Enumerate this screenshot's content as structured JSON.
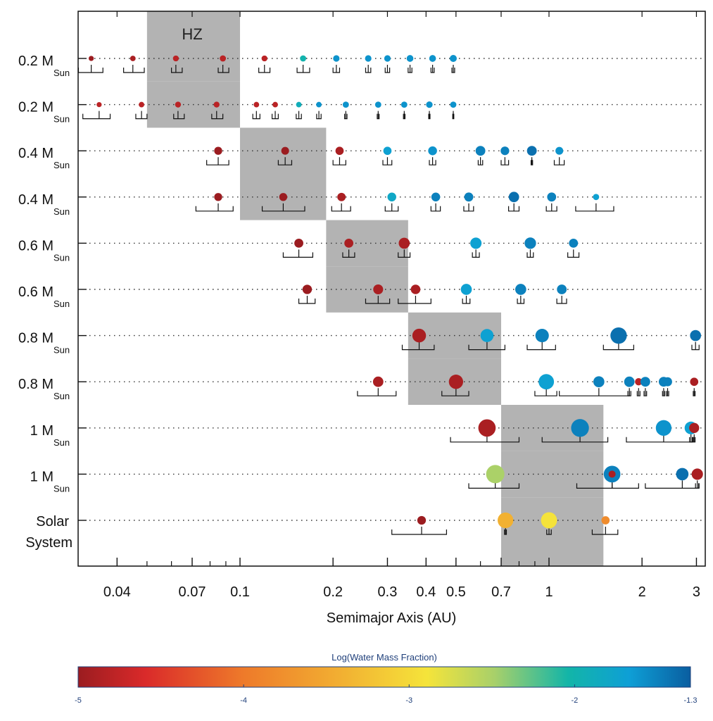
{
  "chart_data": {
    "type": "scatter",
    "xlabel": "Semimajor Axis (AU)",
    "x_scale": "log",
    "xlim": [
      0.03,
      3.1
    ],
    "x_ticks": [
      {
        "value": 0.04,
        "label": "0.04"
      },
      {
        "value": 0.07,
        "label": "0.07"
      },
      {
        "value": 0.1,
        "label": "0.1"
      },
      {
        "value": 0.2,
        "label": "0.2"
      },
      {
        "value": 0.3,
        "label": "0.3"
      },
      {
        "value": 0.4,
        "label": "0.4"
      },
      {
        "value": 0.5,
        "label": "0.5"
      },
      {
        "value": 0.7,
        "label": "0.7"
      },
      {
        "value": 1,
        "label": "1"
      },
      {
        "value": 2,
        "label": "2"
      },
      {
        "value": 3,
        "label": "3"
      }
    ],
    "hz_label": "HZ",
    "colorbar": {
      "title": "Log(Water Mass Fraction)",
      "range": [
        -5,
        -1.3
      ],
      "ticks": [
        {
          "value": -5,
          "label": "-5"
        },
        {
          "value": -4,
          "label": "-4"
        },
        {
          "value": -3,
          "label": "-3"
        },
        {
          "value": -2,
          "label": "-2"
        },
        {
          "value": -1.3,
          "label": "-1.3"
        }
      ]
    },
    "rows": [
      {
        "label_main": "0.2 M",
        "label_sub": "Sun",
        "hz": [
          0.05,
          0.1
        ],
        "planets": [
          {
            "a": 0.033,
            "lw": -5,
            "m": 0.3,
            "e": [
              0.03,
              0.036
            ]
          },
          {
            "a": 0.045,
            "lw": -4.9,
            "m": 0.4,
            "e": [
              0.042,
              0.049
            ]
          },
          {
            "a": 0.062,
            "lw": -4.8,
            "m": 0.5,
            "e": [
              0.06,
              0.065
            ]
          },
          {
            "a": 0.088,
            "lw": -4.8,
            "m": 0.6,
            "e": [
              0.085,
              0.092
            ]
          },
          {
            "a": 0.12,
            "lw": -4.8,
            "m": 0.5,
            "e": [
              0.115,
              0.125
            ]
          },
          {
            "a": 0.16,
            "lw": -2,
            "m": 0.6,
            "e": [
              0.153,
              0.168
            ]
          },
          {
            "a": 0.205,
            "lw": -1.6,
            "m": 0.7,
            "e": [
              0.2,
              0.21
            ]
          },
          {
            "a": 0.26,
            "lw": -1.6,
            "m": 0.7,
            "e": [
              0.255,
              0.265
            ]
          },
          {
            "a": 0.3,
            "lw": -1.6,
            "m": 0.7,
            "e": [
              0.295,
              0.305
            ]
          },
          {
            "a": 0.355,
            "lw": -1.6,
            "m": 0.8,
            "e": [
              0.35,
              0.36
            ]
          },
          {
            "a": 0.42,
            "lw": -1.6,
            "m": 0.8,
            "e": [
              0.415,
              0.425
            ]
          },
          {
            "a": 0.49,
            "lw": -1.6,
            "m": 0.9,
            "e": [
              0.485,
              0.495
            ]
          }
        ]
      },
      {
        "label_main": "0.2 M",
        "label_sub": "Sun",
        "hz": [
          0.05,
          0.1
        ],
        "planets": [
          {
            "a": 0.035,
            "lw": -4.8,
            "m": 0.3,
            "e": [
              0.031,
              0.038
            ]
          },
          {
            "a": 0.048,
            "lw": -4.8,
            "m": 0.4,
            "e": [
              0.046,
              0.05
            ]
          },
          {
            "a": 0.063,
            "lw": -4.8,
            "m": 0.5,
            "e": [
              0.061,
              0.066
            ]
          },
          {
            "a": 0.084,
            "lw": -4.8,
            "m": 0.5,
            "e": [
              0.081,
              0.088
            ]
          },
          {
            "a": 0.113,
            "lw": -4.8,
            "m": 0.4,
            "e": [
              0.11,
              0.116
            ]
          },
          {
            "a": 0.13,
            "lw": -4.8,
            "m": 0.4,
            "e": [
              0.127,
              0.133
            ]
          },
          {
            "a": 0.155,
            "lw": -1.9,
            "m": 0.4,
            "e": [
              0.152,
              0.158
            ]
          },
          {
            "a": 0.18,
            "lw": -1.6,
            "m": 0.4,
            "e": [
              0.177,
              0.183
            ]
          },
          {
            "a": 0.22,
            "lw": -1.6,
            "m": 0.6,
            "e": [
              0.218,
              0.222
            ]
          },
          {
            "a": 0.28,
            "lw": -1.6,
            "m": 0.6,
            "e": [
              0.278,
              0.282
            ]
          },
          {
            "a": 0.34,
            "lw": -1.6,
            "m": 0.6,
            "e": [
              0.338,
              0.342
            ]
          },
          {
            "a": 0.41,
            "lw": -1.6,
            "m": 0.7,
            "e": [
              0.408,
              0.412
            ]
          },
          {
            "a": 0.49,
            "lw": -1.6,
            "m": 0.6,
            "e": [
              0.488,
              0.492
            ]
          }
        ]
      },
      {
        "label_main": "0.4 M",
        "label_sub": "Sun",
        "hz": [
          0.1,
          0.19
        ],
        "planets": [
          {
            "a": 0.085,
            "lw": -5,
            "m": 1.3,
            "e": [
              0.078,
              0.092
            ]
          },
          {
            "a": 0.14,
            "lw": -5,
            "m": 1.2,
            "e": [
              0.133,
              0.147
            ]
          },
          {
            "a": 0.21,
            "lw": -4.9,
            "m": 1.4,
            "e": [
              0.2,
              0.22
            ]
          },
          {
            "a": 0.3,
            "lw": -1.7,
            "m": 1.4,
            "e": [
              0.29,
              0.31
            ]
          },
          {
            "a": 0.42,
            "lw": -1.6,
            "m": 1.7,
            "e": [
              0.41,
              0.43
            ]
          },
          {
            "a": 0.6,
            "lw": -1.5,
            "m": 2.2,
            "e": [
              0.59,
              0.61
            ]
          },
          {
            "a": 0.72,
            "lw": -1.5,
            "m": 1.6,
            "e": [
              0.7,
              0.74
            ]
          },
          {
            "a": 0.88,
            "lw": -1.4,
            "m": 2.2,
            "e": [
              0.875,
              0.885
            ]
          },
          {
            "a": 1.08,
            "lw": -1.6,
            "m": 1.2,
            "e": [
              1.04,
              1.12
            ]
          }
        ]
      },
      {
        "label_main": "0.4 M",
        "label_sub": "Sun",
        "hz": [
          0.1,
          0.19
        ],
        "planets": [
          {
            "a": 0.085,
            "lw": -5,
            "m": 1.3,
            "e": [
              0.072,
              0.095
            ]
          },
          {
            "a": 0.138,
            "lw": -5,
            "m": 1.3,
            "e": [
              0.118,
              0.162
            ]
          },
          {
            "a": 0.213,
            "lw": -4.9,
            "m": 1.5,
            "e": [
              0.198,
              0.228
            ]
          },
          {
            "a": 0.31,
            "lw": -1.8,
            "m": 1.7,
            "e": [
              0.295,
              0.325
            ]
          },
          {
            "a": 0.43,
            "lw": -1.5,
            "m": 1.7,
            "e": [
              0.415,
              0.445
            ]
          },
          {
            "a": 0.55,
            "lw": -1.5,
            "m": 1.8,
            "e": [
              0.53,
              0.57
            ]
          },
          {
            "a": 0.77,
            "lw": -1.4,
            "m": 2.6,
            "e": [
              0.74,
              0.8
            ]
          },
          {
            "a": 1.02,
            "lw": -1.5,
            "m": 1.8,
            "e": [
              0.98,
              1.06
            ]
          },
          {
            "a": 1.42,
            "lw": -1.7,
            "m": 0.6,
            "e": [
              1.22,
              1.62
            ]
          }
        ]
      },
      {
        "label_main": "0.6 M",
        "label_sub": "Sun",
        "hz": [
          0.19,
          0.35
        ],
        "planets": [
          {
            "a": 0.155,
            "lw": -5,
            "m": 1.8,
            "e": [
              0.138,
              0.172
            ]
          },
          {
            "a": 0.225,
            "lw": -4.9,
            "m": 1.8,
            "e": [
              0.215,
              0.235
            ]
          },
          {
            "a": 0.34,
            "lw": -4.9,
            "m": 3.0,
            "e": [
              0.325,
              0.355
            ]
          },
          {
            "a": 0.58,
            "lw": -1.7,
            "m": 3.2,
            "e": [
              0.565,
              0.595
            ]
          },
          {
            "a": 0.87,
            "lw": -1.5,
            "m": 3.3,
            "e": [
              0.85,
              0.89
            ]
          },
          {
            "a": 1.2,
            "lw": -1.5,
            "m": 1.8,
            "e": [
              1.15,
              1.25
            ]
          }
        ]
      },
      {
        "label_main": "0.6 M",
        "label_sub": "Sun",
        "hz": [
          0.19,
          0.35
        ],
        "planets": [
          {
            "a": 0.165,
            "lw": -5,
            "m": 2.0,
            "e": [
              0.155,
              0.175
            ]
          },
          {
            "a": 0.28,
            "lw": -4.9,
            "m": 2.3,
            "e": [
              0.255,
              0.305
            ]
          },
          {
            "a": 0.37,
            "lw": -4.9,
            "m": 2.1,
            "e": [
              0.325,
              0.415
            ]
          },
          {
            "a": 0.54,
            "lw": -1.7,
            "m": 3.0,
            "e": [
              0.525,
              0.555
            ]
          },
          {
            "a": 0.81,
            "lw": -1.5,
            "m": 3.0,
            "e": [
              0.79,
              0.83
            ]
          },
          {
            "a": 1.1,
            "lw": -1.5,
            "m": 2.2,
            "e": [
              1.06,
              1.14
            ]
          }
        ]
      },
      {
        "label_main": "0.8 M",
        "label_sub": "Sun",
        "hz": [
          0.35,
          0.7
        ],
        "planets": [
          {
            "a": 0.38,
            "lw": -4.9,
            "m": 5.0,
            "e": [
              0.335,
              0.425
            ]
          },
          {
            "a": 0.63,
            "lw": -1.7,
            "m": 4.5,
            "e": [
              0.55,
              0.72
            ]
          },
          {
            "a": 0.95,
            "lw": -1.5,
            "m": 4.8,
            "e": [
              0.85,
              1.05
            ]
          },
          {
            "a": 1.68,
            "lw": -1.4,
            "m": 7.5,
            "e": [
              1.5,
              1.88
            ]
          },
          {
            "a": 2.98,
            "lw": -1.4,
            "m": 3.0,
            "e": [
              2.9,
              3.06
            ]
          }
        ]
      },
      {
        "label_main": "0.8 M",
        "label_sub": "Sun",
        "hz": [
          0.35,
          0.7
        ],
        "planets": [
          {
            "a": 0.28,
            "lw": -4.9,
            "m": 2.6,
            "e": [
              0.24,
              0.32
            ]
          },
          {
            "a": 0.5,
            "lw": -4.9,
            "m": 5.5,
            "e": [
              0.45,
              0.55
            ]
          },
          {
            "a": 0.98,
            "lw": -1.7,
            "m": 6.5,
            "e": [
              0.9,
              1.06
            ]
          },
          {
            "a": 1.45,
            "lw": -1.5,
            "m": 3.0,
            "e": [
              1.08,
              1.82
            ]
          },
          {
            "a": 1.82,
            "lw": -1.5,
            "m": 2.6,
            "e": [
              1.8,
              1.84
            ]
          },
          {
            "a": 1.95,
            "lw": -4.8,
            "m": 1.0,
            "e": [
              1.93,
              1.97
            ]
          },
          {
            "a": 2.05,
            "lw": -1.5,
            "m": 2.2,
            "e": [
              2.03,
              2.07
            ]
          },
          {
            "a": 2.35,
            "lw": -1.5,
            "m": 2.2,
            "e": [
              2.33,
              2.37
            ]
          },
          {
            "a": 2.42,
            "lw": -1.5,
            "m": 1.8,
            "e": [
              2.4,
              2.44
            ]
          },
          {
            "a": 2.95,
            "lw": -4.9,
            "m": 1.4,
            "e": [
              2.93,
              2.97
            ]
          }
        ]
      },
      {
        "label_main": "1 M",
        "label_sub": "Sun",
        "hz": [
          0.7,
          1.5
        ],
        "planets": [
          {
            "a": 0.63,
            "lw": -4.9,
            "m": 8.5,
            "e": [
              0.48,
              0.8
            ]
          },
          {
            "a": 1.26,
            "lw": -1.5,
            "m": 9.0,
            "e": [
              0.95,
              1.55
            ]
          },
          {
            "a": 2.35,
            "lw": -1.6,
            "m": 6.8,
            "e": [
              1.78,
              2.92
            ]
          },
          {
            "a": 2.88,
            "lw": -1.7,
            "m": 4.2,
            "e": [
              2.85,
              2.91
            ]
          },
          {
            "a": 2.95,
            "lw": -4.9,
            "m": 2.4,
            "e": [
              2.93,
              2.97
            ]
          }
        ]
      },
      {
        "label_main": "1 M",
        "label_sub": "Sun",
        "hz": [
          0.7,
          1.5
        ],
        "planets": [
          {
            "a": 0.67,
            "lw": -2.5,
            "m": 9.5,
            "e": [
              0.55,
              0.8
            ]
          },
          {
            "a": 1.6,
            "lw": -1.5,
            "m": 7.8,
            "e": [
              1.23,
              1.95
            ]
          },
          {
            "a": 1.6,
            "lw": -4.9,
            "m": 0.9,
            "e": [
              1.6,
              1.6
            ]
          },
          {
            "a": 2.7,
            "lw": -1.4,
            "m": 4.0,
            "e": [
              2.05,
              3.05
            ]
          },
          {
            "a": 3.02,
            "lw": -4.9,
            "m": 3.2,
            "e": [
              2.98,
              3.06
            ]
          }
        ]
      },
      {
        "label_main": "Solar",
        "label_sub": "System",
        "hz": [
          0.7,
          1.5
        ],
        "planets": [
          {
            "a": 0.387,
            "lw": -5,
            "m": 1.6,
            "e": [
              0.31,
              0.466
            ]
          },
          {
            "a": 0.723,
            "lw": -3.4,
            "m": 6.8,
            "e": [
              0.718,
              0.728
            ]
          },
          {
            "a": 1.0,
            "lw": -2.9,
            "m": 7.2,
            "e": [
              0.983,
              1.017
            ]
          },
          {
            "a": 1.524,
            "lw": -3.8,
            "m": 1.4,
            "e": [
              1.38,
              1.67
            ]
          }
        ]
      }
    ]
  }
}
